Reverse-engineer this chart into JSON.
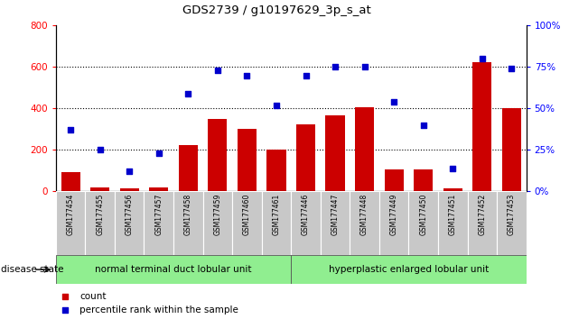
{
  "title": "GDS2739 / g10197629_3p_s_at",
  "samples": [
    "GSM177454",
    "GSM177455",
    "GSM177456",
    "GSM177457",
    "GSM177458",
    "GSM177459",
    "GSM177460",
    "GSM177461",
    "GSM177446",
    "GSM177447",
    "GSM177448",
    "GSM177449",
    "GSM177450",
    "GSM177451",
    "GSM177452",
    "GSM177453"
  ],
  "counts": [
    95,
    20,
    15,
    20,
    225,
    350,
    300,
    200,
    325,
    365,
    405,
    105,
    105,
    15,
    625,
    400
  ],
  "percentiles": [
    37,
    25,
    12,
    23,
    59,
    73,
    70,
    52,
    70,
    75,
    75,
    54,
    40,
    14,
    80,
    74
  ],
  "group1_label": "normal terminal duct lobular unit",
  "group2_label": "hyperplastic enlarged lobular unit",
  "group1_count": 8,
  "group2_count": 8,
  "bar_color": "#cc0000",
  "dot_color": "#0000cc",
  "ylim_left": [
    0,
    800
  ],
  "ylim_right": [
    0,
    100
  ],
  "yticks_left": [
    0,
    200,
    400,
    600,
    800
  ],
  "yticks_right": [
    0,
    25,
    50,
    75,
    100
  ],
  "yticklabels_right": [
    "0%",
    "25%",
    "50%",
    "75%",
    "100%"
  ],
  "grid_values": [
    200,
    400,
    600
  ],
  "disease_state_label": "disease state",
  "legend_count_label": "count",
  "legend_pct_label": "percentile rank within the sample",
  "group1_bg": "#90ee90",
  "group2_bg": "#90ee90",
  "xlabels_bg": "#c8c8c8"
}
